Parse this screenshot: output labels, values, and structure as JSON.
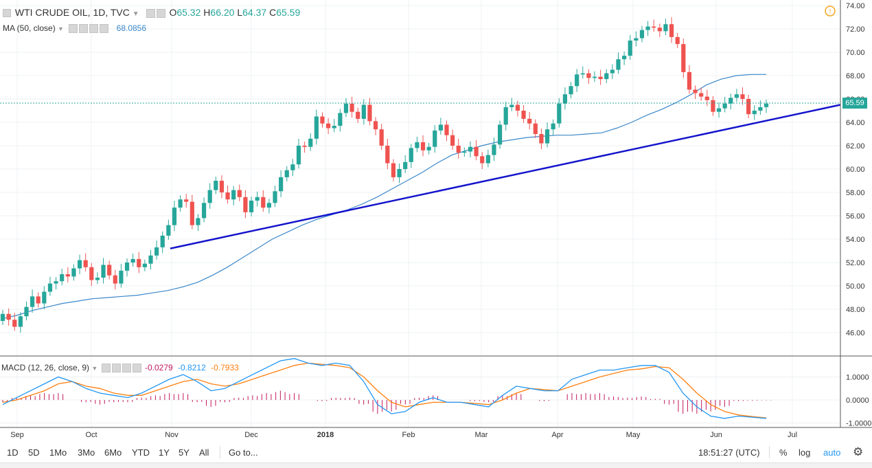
{
  "header": {
    "symbol": "WTI CRUDE OIL, 1D, TVC",
    "o_label": "O",
    "o_value": "65.32",
    "h_label": "H",
    "h_value": "66.20",
    "l_label": "L",
    "l_value": "64.37",
    "c_label": "C",
    "c_value": "65.59",
    "ma_label": "MA (50, close)",
    "ma_value": "68.0856",
    "macd_label": "MACD (12, 26, close, 9)",
    "macd_v1": "-0.0279",
    "macd_v2": "-0.8212",
    "macd_v3": "-0.7933"
  },
  "price_tag": "65.59",
  "colors": {
    "up": "#26a69a",
    "down": "#ef5350",
    "ma": "#3b87c9",
    "trend": "#1414cc",
    "macd": "#2196f3",
    "signal": "#ff7f0e",
    "hist": "#c2185b"
  },
  "chart_data": [
    {
      "type": "candlestick",
      "title": "WTI CRUDE OIL, 1D, TVC",
      "x_ticks": [
        "Sep",
        "Oct",
        "Nov",
        "Dec",
        "2018",
        "Feb",
        "Mar",
        "Apr",
        "May",
        "Jun",
        "Jul"
      ],
      "y_ticks": [
        "46.00",
        "48.00",
        "50.00",
        "52.00",
        "54.00",
        "56.00",
        "58.00",
        "60.00",
        "62.00",
        "64.00",
        "66.00",
        "68.00",
        "70.00",
        "72.00",
        "74.00"
      ],
      "ylim": [
        45,
        74
      ],
      "last_close": 65.59,
      "closes": [
        47.6,
        47.1,
        46.5,
        47.4,
        48.2,
        49.1,
        48.5,
        49.5,
        50.2,
        50.4,
        51.0,
        50.8,
        51.5,
        52.2,
        51.6,
        50.5,
        50.7,
        51.8,
        50.9,
        50.2,
        51.3,
        52.0,
        52.3,
        51.6,
        51.9,
        52.6,
        53.3,
        54.3,
        55.2,
        56.7,
        57.4,
        57.2,
        55.2,
        55.8,
        57.1,
        58.2,
        59.0,
        58.0,
        57.4,
        58.2,
        57.6,
        56.3,
        57.3,
        57.6,
        56.7,
        57.1,
        58.1,
        59.3,
        59.9,
        60.4,
        62.0,
        61.9,
        62.6,
        64.5,
        63.9,
        63.5,
        63.7,
        64.8,
        65.6,
        64.9,
        64.3,
        65.5,
        64.1,
        63.4,
        62.0,
        60.5,
        59.3,
        60.0,
        60.6,
        61.8,
        62.3,
        61.6,
        61.9,
        63.3,
        63.8,
        62.9,
        62.0,
        61.4,
        61.5,
        61.9,
        61.1,
        60.5,
        61.2,
        62.1,
        63.8,
        65.3,
        65.5,
        65.0,
        64.3,
        63.9,
        63.0,
        62.2,
        63.4,
        63.9,
        65.6,
        66.4,
        67.1,
        68.1,
        68.2,
        67.8,
        67.9,
        67.7,
        68.2,
        68.5,
        69.4,
        69.7,
        71.0,
        71.2,
        71.9,
        72.2,
        72.1,
        71.8,
        72.4,
        71.3,
        70.7,
        68.3,
        66.8,
        66.5,
        66.2,
        65.9,
        64.9,
        65.2,
        65.6,
        66.1,
        66.4,
        66.0,
        64.7,
        65.0,
        65.3,
        65.6
      ],
      "ma50": [
        47.2,
        47.5,
        47.9,
        48.2,
        48.5,
        48.7,
        48.9,
        49.0,
        49.1,
        49.2,
        49.4,
        49.6,
        49.9,
        50.3,
        50.9,
        51.6,
        52.4,
        53.2,
        54.0,
        54.6,
        55.2,
        55.7,
        56.1,
        56.5,
        57.0,
        57.6,
        58.3,
        59.0,
        59.7,
        60.5,
        61.2,
        61.6,
        62.0,
        62.3,
        62.5,
        62.7,
        62.8,
        62.9,
        62.9,
        63.0,
        63.1,
        63.5,
        64.0,
        64.6,
        65.1,
        65.7,
        66.4,
        67.2,
        67.7,
        68.0,
        68.1,
        68.1
      ],
      "trendline": {
        "from_price": 53.2,
        "to_price": 65.5
      }
    },
    {
      "type": "macd",
      "title": "MACD (12, 26, close, 9)",
      "y_ticks": [
        "1.0000",
        "0.0000",
        "-1.0000"
      ],
      "ylim": [
        -1.25,
        1.95
      ],
      "macd": [
        -0.2,
        0.1,
        0.4,
        0.7,
        1.0,
        0.8,
        0.5,
        0.3,
        0.2,
        0.1,
        0.3,
        0.6,
        0.9,
        1.1,
        0.8,
        0.4,
        0.5,
        0.8,
        1.1,
        1.4,
        1.7,
        1.8,
        1.6,
        1.5,
        1.6,
        1.5,
        0.8,
        -0.2,
        -0.6,
        -0.5,
        -0.1,
        0.1,
        -0.1,
        -0.1,
        -0.2,
        -0.3,
        0.2,
        0.6,
        0.5,
        0.4,
        0.4,
        0.9,
        1.1,
        1.3,
        1.3,
        1.4,
        1.5,
        1.5,
        1.2,
        0.3,
        -0.3,
        -0.7,
        -0.8,
        -0.7,
        -0.75,
        -0.8
      ],
      "signal": [
        -0.1,
        0.0,
        0.2,
        0.4,
        0.7,
        0.8,
        0.6,
        0.5,
        0.3,
        0.2,
        0.2,
        0.4,
        0.6,
        0.8,
        0.9,
        0.7,
        0.6,
        0.7,
        0.9,
        1.1,
        1.3,
        1.5,
        1.6,
        1.55,
        1.5,
        1.4,
        1.0,
        0.4,
        -0.1,
        -0.3,
        -0.2,
        -0.1,
        -0.1,
        -0.1,
        -0.15,
        -0.2,
        0.0,
        0.3,
        0.5,
        0.45,
        0.4,
        0.6,
        0.8,
        1.0,
        1.15,
        1.3,
        1.35,
        1.45,
        1.4,
        0.9,
        0.3,
        -0.2,
        -0.5,
        -0.65,
        -0.72,
        -0.78
      ],
      "histogram": [
        -0.1,
        0.1,
        0.2,
        0.3,
        0.3,
        0.0,
        -0.1,
        -0.2,
        -0.1,
        -0.1,
        0.1,
        0.2,
        0.3,
        0.3,
        -0.1,
        -0.3,
        -0.1,
        0.1,
        0.2,
        0.3,
        0.4,
        0.3,
        0.0,
        -0.05,
        0.1,
        0.1,
        -0.2,
        -0.6,
        -0.5,
        -0.2,
        0.1,
        0.2,
        0.0,
        0.0,
        -0.05,
        -0.1,
        0.2,
        0.3,
        0.0,
        -0.05,
        0.0,
        0.3,
        0.3,
        0.3,
        0.15,
        0.1,
        0.15,
        0.05,
        -0.2,
        -0.6,
        -0.6,
        -0.5,
        -0.3,
        -0.05,
        -0.03,
        -0.02
      ]
    }
  ],
  "toolbar": {
    "ranges": [
      "1D",
      "5D",
      "1Mo",
      "3Mo",
      "6Mo",
      "YTD",
      "1Y",
      "5Y",
      "All"
    ],
    "goto": "Go to...",
    "time": "18:51:27 (UTC)",
    "percent": "%",
    "log": "log",
    "auto": "auto"
  }
}
